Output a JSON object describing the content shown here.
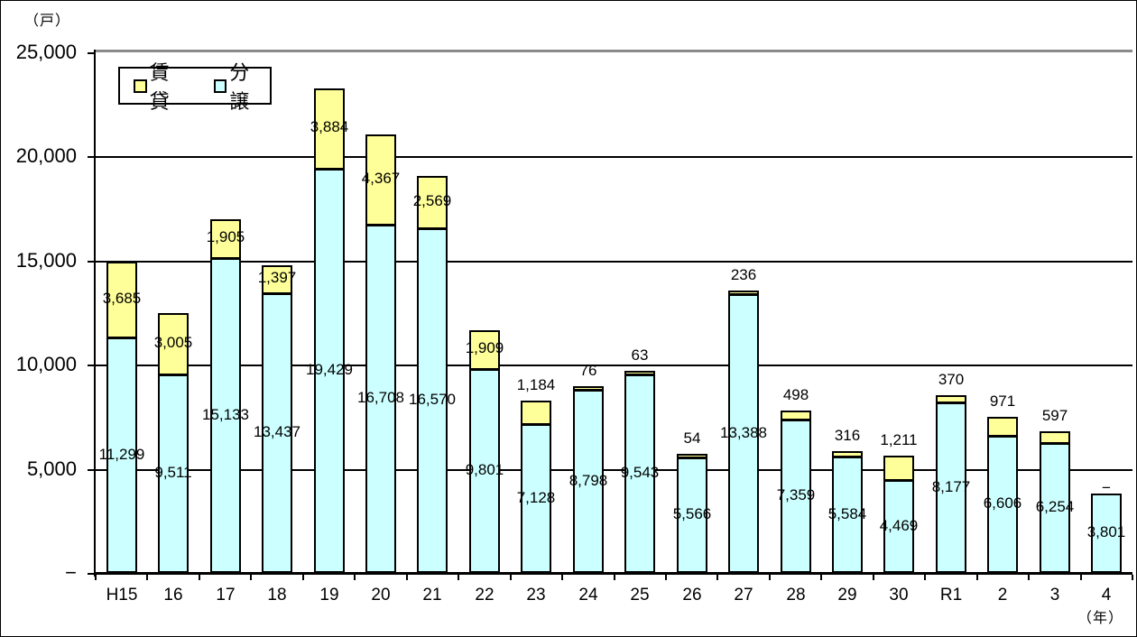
{
  "chart": {
    "unit_y": "（戸）",
    "unit_x": "（年）"
  },
  "chart_data": {
    "type": "bar",
    "stacked": true,
    "title": "",
    "xlabel": "（年）",
    "ylabel": "（戸）",
    "categories": [
      "H15",
      "16",
      "17",
      "18",
      "19",
      "20",
      "21",
      "22",
      "23",
      "24",
      "25",
      "26",
      "27",
      "28",
      "29",
      "30",
      "R1",
      "2",
      "3",
      "4"
    ],
    "series": [
      {
        "name": "賃貸",
        "color": "#FFFF99",
        "values": [
          3685,
          3005,
          1905,
          1397,
          3884,
          4367,
          2569,
          1909,
          1184,
          76,
          63,
          54,
          236,
          498,
          316,
          1211,
          370,
          971,
          597,
          null
        ],
        "labels": [
          "3,685",
          "3,005",
          "1,905",
          "1,397",
          "3,884",
          "4,367",
          "2,569",
          "1,909",
          "1,184",
          "76",
          "63",
          "54",
          "236",
          "498",
          "316",
          "1,211",
          "370",
          "971",
          "597",
          "−"
        ]
      },
      {
        "name": "分譲",
        "color": "#CCFFFF",
        "values": [
          11299,
          9511,
          15133,
          13437,
          19429,
          16708,
          16570,
          9801,
          7128,
          8798,
          9543,
          5566,
          13388,
          7359,
          5584,
          4469,
          8177,
          6606,
          6254,
          3801
        ],
        "labels": [
          "11,299",
          "9,511",
          "15,133",
          "13,437",
          "19,429",
          "16,708",
          "16,570",
          "9,801",
          "7,128",
          "8,798",
          "9,543",
          "5,566",
          "13,388",
          "7,359",
          "5,584",
          "4,469",
          "8,177",
          "6,606",
          "6,254",
          "3,801"
        ]
      }
    ],
    "ylim": [
      0,
      25000
    ],
    "ytick_interval": 5000,
    "ytick_labels": [
      "−",
      "5,000",
      "10,000",
      "15,000",
      "20,000",
      "25,000"
    ],
    "grid": true,
    "legend_position": "top-left-inside",
    "null_label": "−",
    "bar_border_color": "#000000"
  }
}
